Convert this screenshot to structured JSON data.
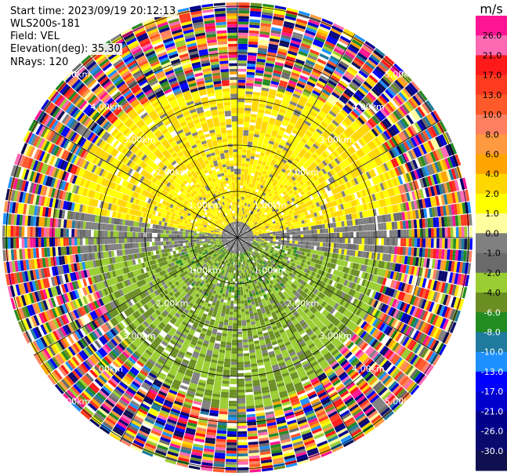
{
  "info": {
    "start_time": "Start time: 2023/09/19 20:12:13",
    "instrument": "WLS200s-181",
    "field": "Field: VEL",
    "elevation": "Elevation(deg): 35.30",
    "nrays": "NRays: 120"
  },
  "range_rings": {
    "unit": "km",
    "labels": [
      "1.00km",
      "2.00km",
      "3.00km",
      "4.00km",
      "5.00km"
    ],
    "values": [
      1,
      2,
      3,
      4,
      5
    ]
  },
  "colorbar": {
    "unit": "m/s",
    "ticks": [
      "26.0",
      "21.0",
      "17.0",
      "13.0",
      "10.0",
      "8.0",
      "6.0",
      "4.0",
      "2.0",
      "1.0",
      "0.0",
      "-1.0",
      "-2.0",
      "-4.0",
      "-6.0",
      "-8.0",
      "-10.0",
      "-13.0",
      "-17.0",
      "-21.0",
      "-26.0",
      "-30.0"
    ],
    "colors": [
      "#ff1493",
      "#ff69b4",
      "#ff1a1a",
      "#ff3b1f",
      "#ff5a2a",
      "#ff8060",
      "#ff9a40",
      "#ffa500",
      "#ffd700",
      "#ffff00",
      "#ffffa0",
      "#808080",
      "#6b6b6b",
      "#9acd32",
      "#6b8e23",
      "#228b22",
      "#1f7a9e",
      "#1e90ff",
      "#0000ff",
      "#0000cd",
      "#00008b",
      "#0a0a6e",
      "#101050"
    ]
  },
  "chart_data": {
    "type": "heatmap",
    "projection": "polar-ppi",
    "field": "VEL",
    "units": "m/s",
    "nrays": 120,
    "max_range_km": 5.5,
    "elevation_deg": 35.3
  }
}
